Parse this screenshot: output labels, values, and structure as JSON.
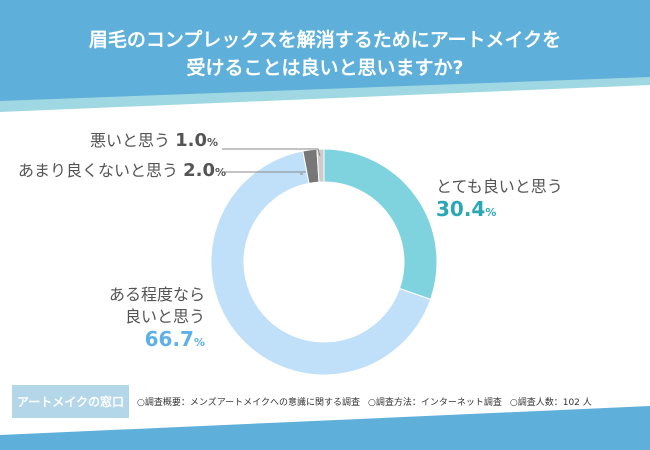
{
  "header": {
    "title_line1": "眉毛のコンプレックスを解消するためにアートメイクを",
    "title_line2": "受けることは良いと思いますか?"
  },
  "chart_data": {
    "type": "pie",
    "donut": true,
    "categories": [
      "とても良いと思う",
      "ある程度なら良いと思う",
      "あまり良くないと思う",
      "悪いと思う"
    ],
    "values": [
      30.4,
      66.7,
      2.0,
      1.0
    ],
    "unit": "%",
    "colors": [
      "#7fd3df",
      "#bfe0f8",
      "#777777",
      "#cccccc"
    ],
    "label_colors": [
      "#2aa7b5",
      "#5fb0e8",
      "#555555",
      "#555555"
    ],
    "labels": [
      {
        "text": "とても良いと思う",
        "value": "30.4"
      },
      {
        "text_line1": "ある程度なら",
        "text_line2": "良いと思う",
        "value": "66.7"
      },
      {
        "text": "あまり良くないと思う",
        "value": "2.0"
      },
      {
        "text": "悪いと思う",
        "value": "1.0"
      }
    ]
  },
  "footer": {
    "brand": "アートメイクの窓口",
    "summary": "○調査概要：メンズアートメイクへの意識に関する調査",
    "method": "○調査方法：インターネット調査",
    "count": "○調査人数：102 人"
  },
  "colors": {
    "header": "#5eb0da",
    "stripe": "#9fd8e2"
  }
}
